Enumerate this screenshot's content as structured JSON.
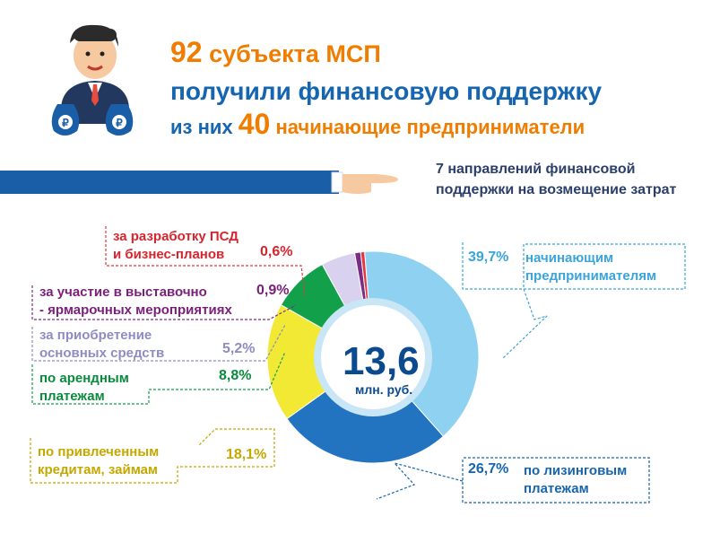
{
  "header": {
    "line1_number": "92",
    "line1_text": " субъекта МСП",
    "line2_text": "получили финансовую поддержку",
    "line3_prefix": "из них ",
    "line3_number": "40",
    "line3_text": " начинающие предприниматели"
  },
  "subtitle": {
    "line1": "7 направлений финансовой",
    "line2": "поддержки на возмещение затрат"
  },
  "center": {
    "value": "13,6",
    "unit": "млн. руб."
  },
  "labels": {
    "psd_l1": "за разработку ПСД",
    "psd_l2": "и бизнес-планов",
    "psd_pct": "0,6%",
    "expo_l1": "за участие в выставочно",
    "expo_l2": "- ярмарочных мероприятиях",
    "expo_pct": "0,9%",
    "assets_l1": "за приобретение",
    "assets_l2": "основных средств",
    "assets_pct": "5,2%",
    "rent_l1": "по арендным",
    "rent_l2": "платежам",
    "rent_pct": "8,8%",
    "credit_l1": "по привлеченным",
    "credit_l2": "кредитам, займам",
    "credit_pct": "18,1%",
    "leasing_l1": "по лизинговым",
    "leasing_l2": "платежам",
    "leasing_pct": "26,7%",
    "start_l1": "начинающим",
    "start_l2": "предпринимателям",
    "start_pct": "39,7%"
  },
  "colors": {
    "start": "#8fd1f1",
    "leasing": "#2273c0",
    "credit": "#f2e935",
    "rent": "#12a04a",
    "assets": "#d9d2ee",
    "expo": "#7b2c84",
    "psd": "#e2373e",
    "orange": "#f07d00",
    "arm": "#1a5ea8"
  },
  "chart_data": {
    "type": "pie",
    "categories": [
      "начинающим предпринимателям",
      "по лизинговым платежам",
      "по привлеченным кредитам, займам",
      "по арендным платежам",
      "за приобретение основных средств",
      "за участие в выставочно - ярмарочных мероприятиях",
      "за разработку ПСД и бизнес-планов"
    ],
    "values": [
      39.7,
      26.7,
      18.1,
      8.8,
      5.2,
      0.9,
      0.6
    ],
    "colors": [
      "#8fd1f1",
      "#2273c0",
      "#f2e935",
      "#12a04a",
      "#d9d2ee",
      "#7b2c84",
      "#e2373e"
    ],
    "unit": "%",
    "total": "13,6",
    "total_unit": "млн. руб."
  }
}
